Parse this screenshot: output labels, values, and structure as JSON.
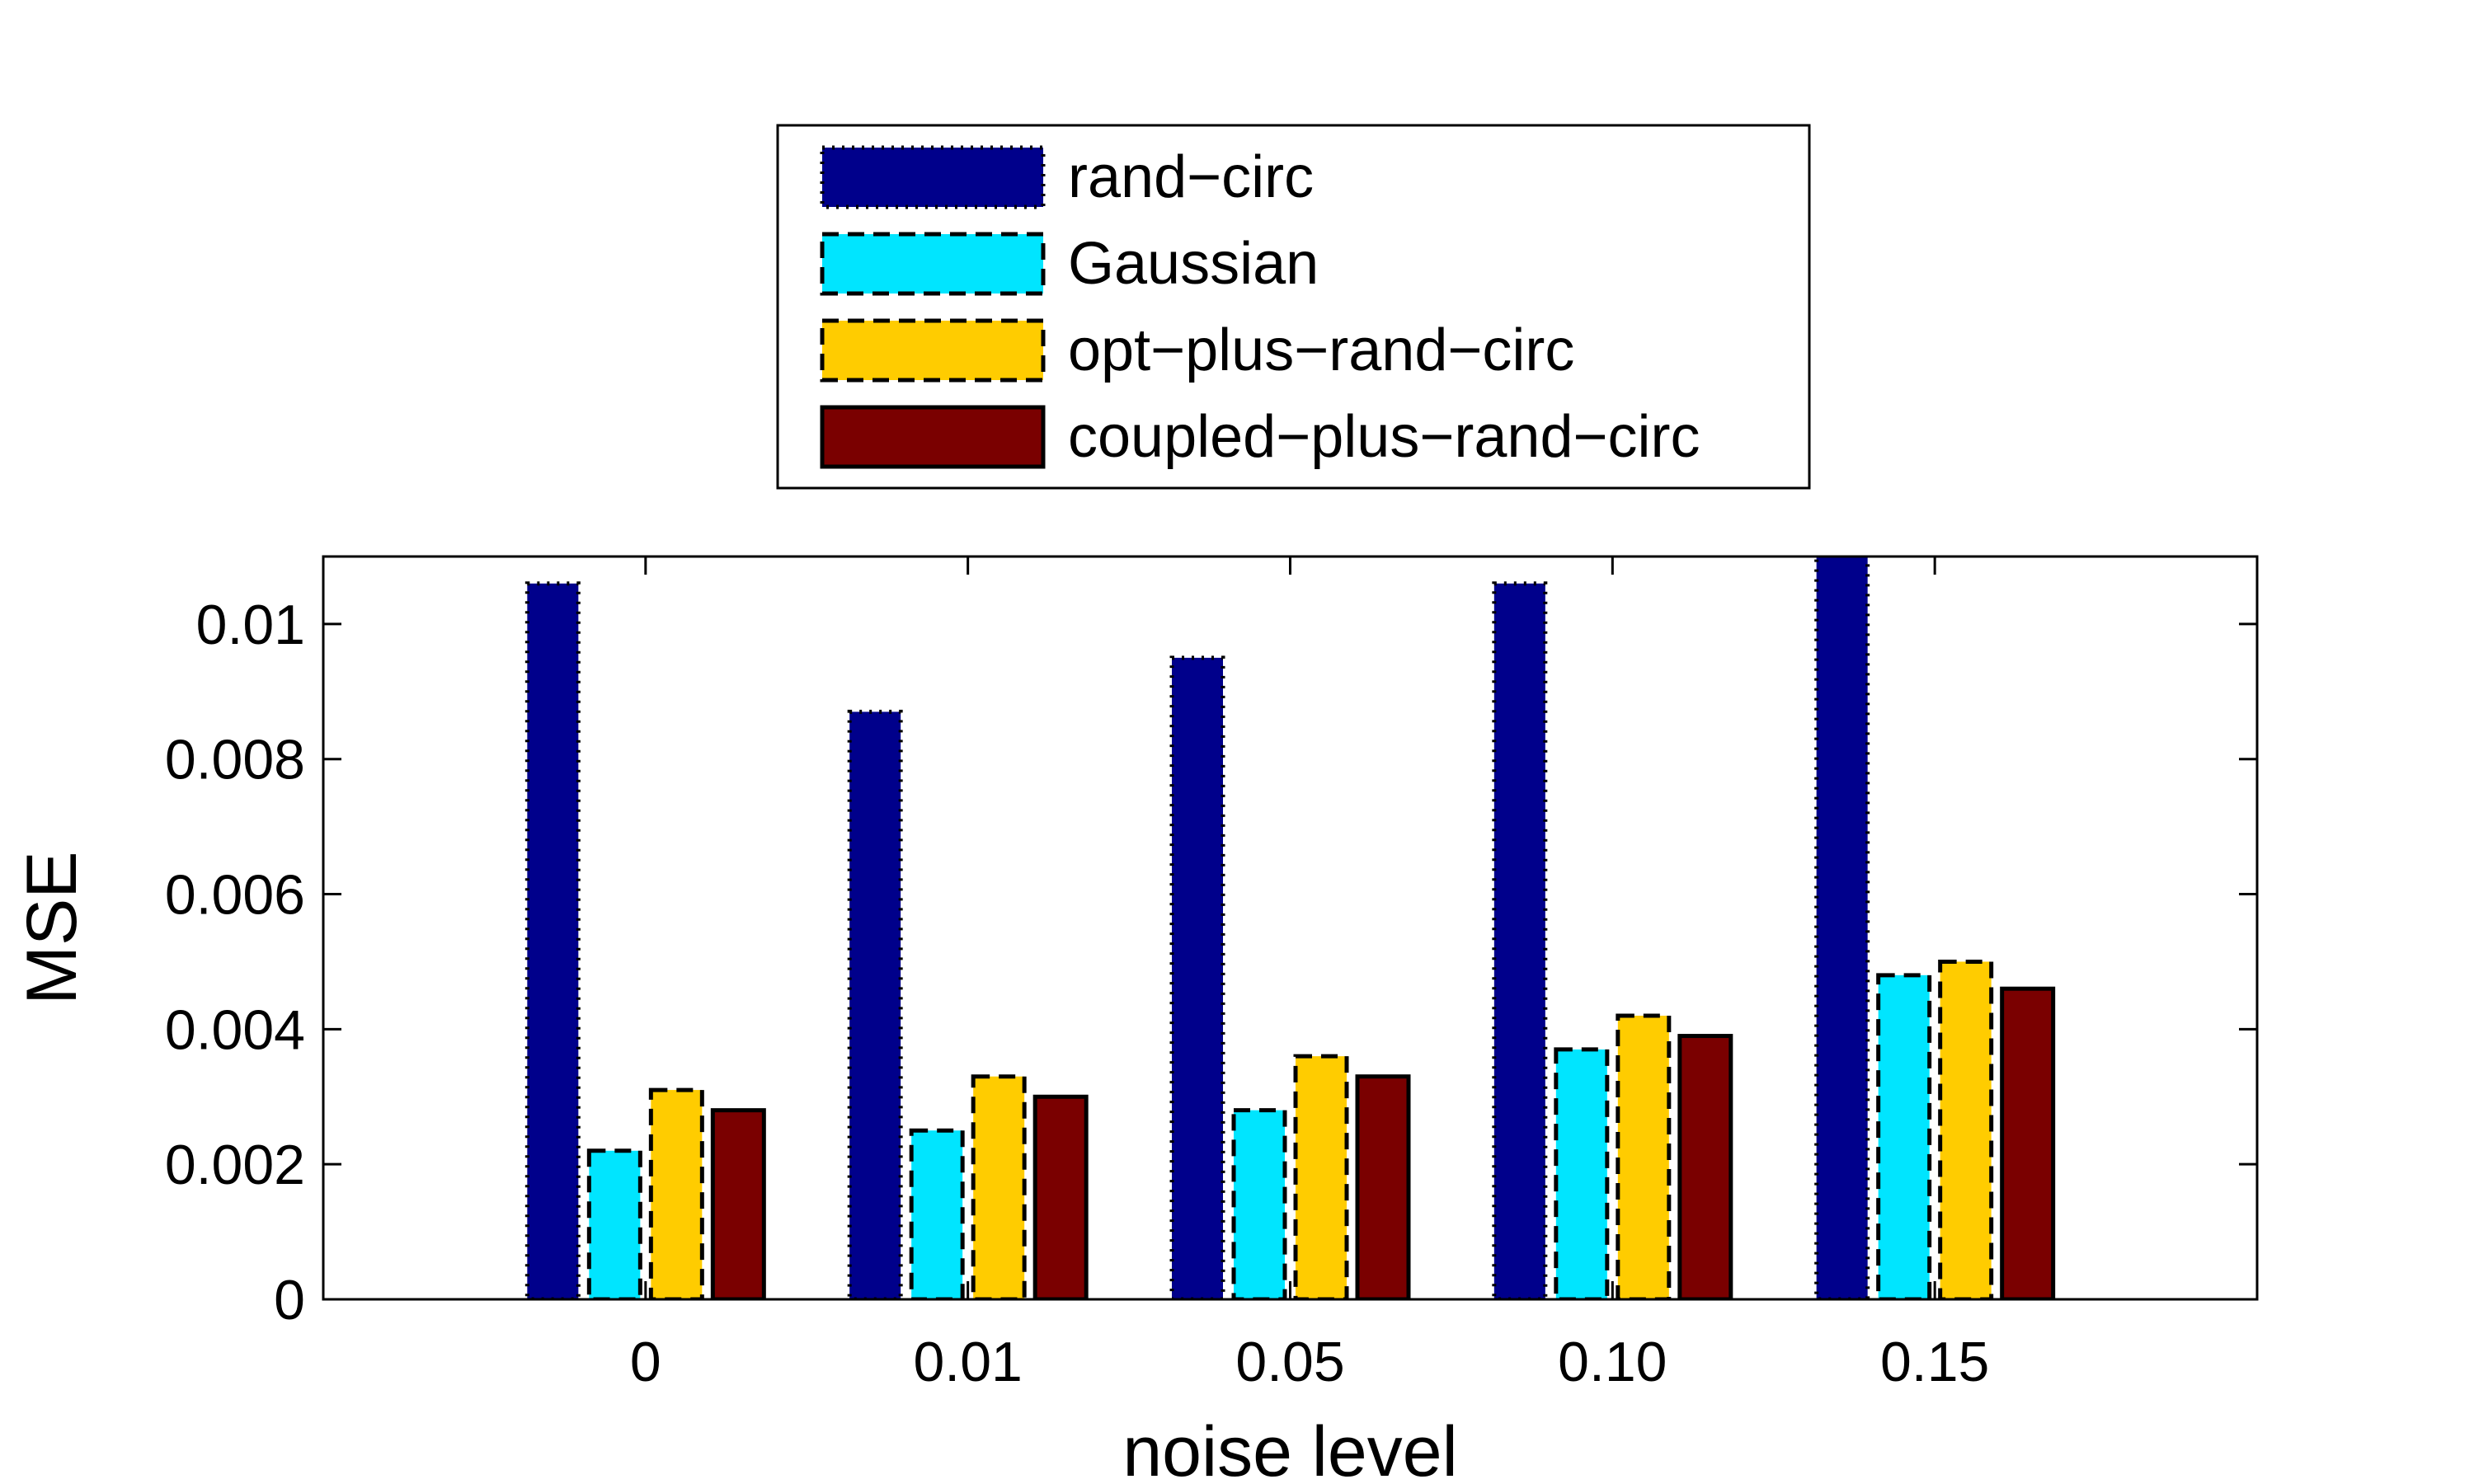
{
  "chart_data": {
    "type": "bar",
    "title": "",
    "xlabel": "noise level",
    "ylabel": "MSE",
    "categories": [
      "0",
      "0.01",
      "0.05",
      "0.10",
      "0.15"
    ],
    "ylim": [
      0,
      0.011
    ],
    "yticks": [
      0,
      0.002,
      0.004,
      0.006,
      0.008,
      0.01
    ],
    "ytick_labels": [
      "0",
      "0.002",
      "0.004",
      "0.006",
      "0.008",
      "0.01"
    ],
    "grid": false,
    "legend_position": "top-center, outside plot",
    "series": [
      {
        "name": "rand−circ",
        "color": "#00008B",
        "edge": "dotted",
        "values": [
          0.0106,
          0.0087,
          0.0095,
          0.0106,
          0.0113
        ]
      },
      {
        "name": "Gaussian",
        "color": "#00E5FF",
        "edge": "dashed",
        "values": [
          0.0022,
          0.0025,
          0.0028,
          0.0037,
          0.0048
        ]
      },
      {
        "name": "opt−plus−rand−circ",
        "color": "#FFCC00",
        "edge": "dashed",
        "values": [
          0.0031,
          0.0033,
          0.0036,
          0.0042,
          0.005
        ]
      },
      {
        "name": "coupled−plus−rand−circ",
        "color": "#7A0000",
        "edge": "solid",
        "values": [
          0.0028,
          0.003,
          0.0033,
          0.0039,
          0.0046
        ]
      }
    ]
  }
}
